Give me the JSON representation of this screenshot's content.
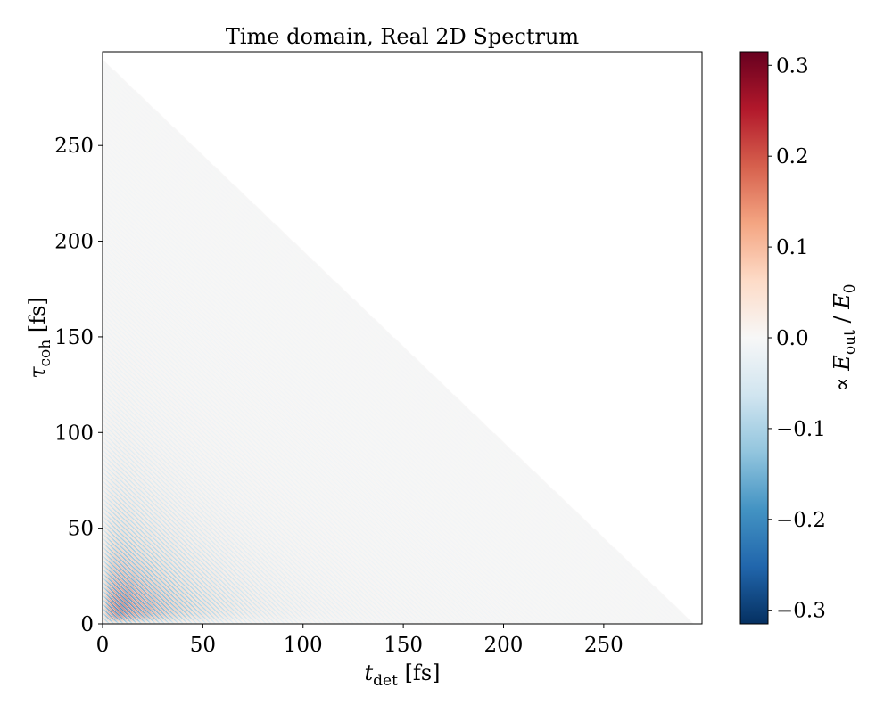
{
  "chart_data": {
    "type": "heatmap",
    "title": "Time domain, Real 2D Spectrum",
    "xlabel": {
      "symbol": "t",
      "subscript": "det",
      "unit": " [fs]"
    },
    "ylabel": {
      "symbol": "τ",
      "subscript": "coh",
      "unit": " [fs]"
    },
    "xlim": [
      0,
      299
    ],
    "ylim": [
      0,
      299
    ],
    "x_ticks": [
      0,
      50,
      100,
      150,
      200,
      250
    ],
    "y_ticks": [
      0,
      50,
      100,
      150,
      200,
      250
    ],
    "x_tick_labels": [
      "0",
      "50",
      "100",
      "150",
      "200",
      "250"
    ],
    "y_tick_labels": [
      "0",
      "50",
      "100",
      "150",
      "200",
      "250"
    ],
    "colorbar": {
      "label": {
        "prefix": "∝ ",
        "numerator": "E",
        "numerator_sub": "out",
        "denominator": "E",
        "denominator_sub": "0"
      },
      "colormap": "RdBu_r",
      "range": [
        -0.315,
        0.315
      ],
      "ticks": [
        0.3,
        0.2,
        0.1,
        0.0,
        -0.1,
        -0.2,
        -0.3
      ],
      "tick_labels": [
        "0.3",
        "0.2",
        "0.1",
        "0.0",
        "−0.1",
        "−0.2",
        "−0.3"
      ]
    },
    "data_description": {
      "support": "t_det + tau_coh <= 295",
      "peak_location": [
        15,
        15
      ],
      "peak_value": 0.31,
      "pattern": "diagonal oscillatory fringes, decaying with t_det and tau_coh"
    },
    "grid": false,
    "legend": "none"
  }
}
